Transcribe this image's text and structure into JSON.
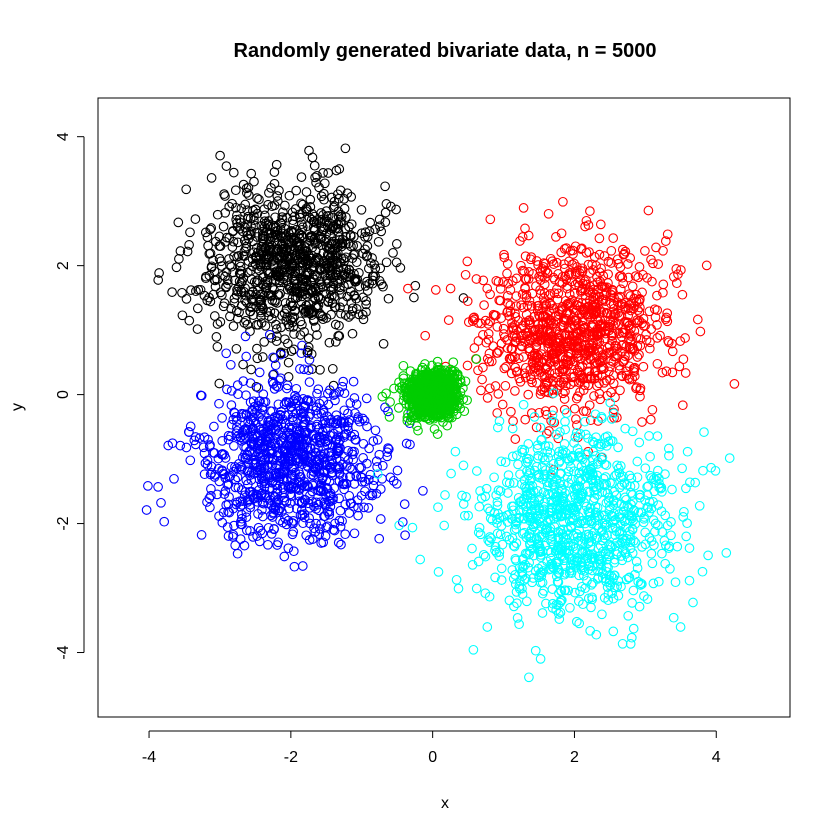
{
  "chart_data": {
    "type": "scatter",
    "title": "Randomly generated bivariate data, n = 5000",
    "xlabel": "x",
    "ylabel": "y",
    "xlim": [
      -4.72,
      5.04
    ],
    "ylim": [
      -5.0,
      4.6
    ],
    "x_ticks": [
      -4,
      -2,
      0,
      2,
      4
    ],
    "y_ticks": [
      -4,
      -2,
      0,
      2,
      4
    ],
    "x_tick_labels": [
      "-4",
      "-2",
      "0",
      "2",
      "4"
    ],
    "y_tick_labels": [
      "-4",
      "-2",
      "0",
      "2",
      "4"
    ],
    "marker": "open-circle",
    "grid": false,
    "legend": "none",
    "n_total": 5000,
    "series": [
      {
        "color": "#000000",
        "n": 1000,
        "mean": [
          -2.0,
          2.0
        ],
        "sd": [
          0.6,
          0.6
        ]
      },
      {
        "color": "#ff0000",
        "n": 1000,
        "mean": [
          2.0,
          1.0
        ],
        "sd": [
          0.65,
          0.65
        ]
      },
      {
        "color": "#0000ff",
        "n": 1000,
        "mean": [
          -2.0,
          -1.0
        ],
        "sd": [
          0.6,
          0.6
        ]
      },
      {
        "color": "#00ffff",
        "n": 1000,
        "mean": [
          2.0,
          -2.0
        ],
        "sd": [
          0.7,
          0.7
        ]
      },
      {
        "color": "#00cd00",
        "n": 1000,
        "mean": [
          0.0,
          0.0
        ],
        "sd": [
          0.18,
          0.18
        ]
      }
    ]
  }
}
